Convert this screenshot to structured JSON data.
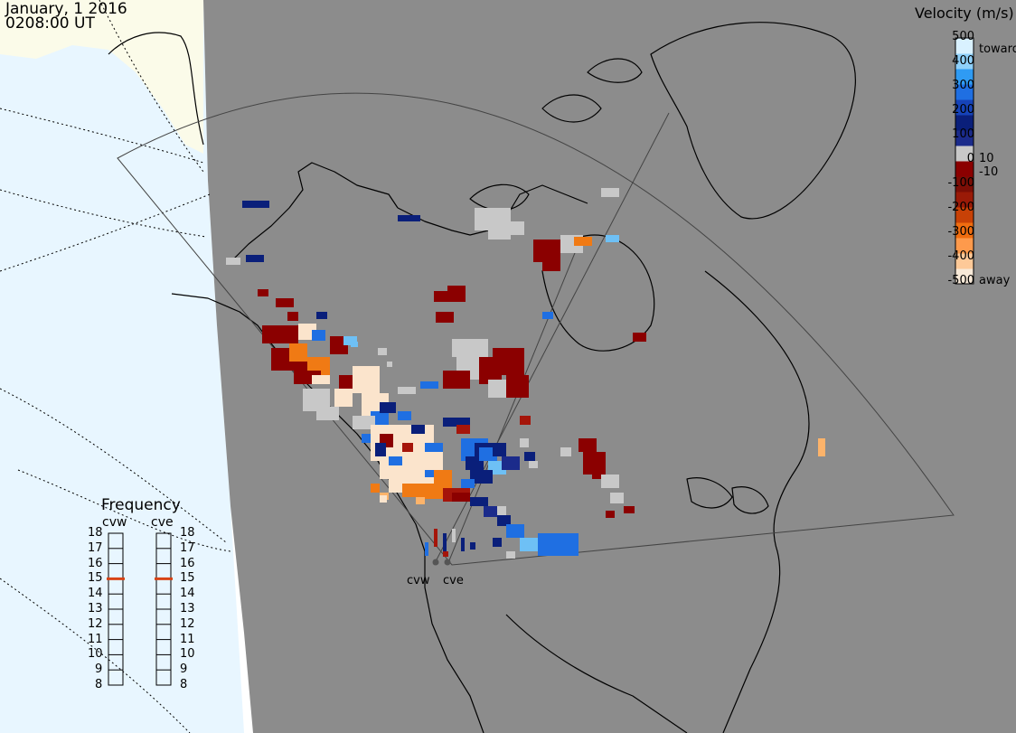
{
  "header": {
    "date": "January, 1 2016",
    "time": "0208:00 UT"
  },
  "colors": {
    "background_gray": "#8c8c8c",
    "ocean_light": "#e8f6ff",
    "land_light": "#fbfbe9",
    "ground_scatter": "#c8c8c8",
    "coastline": "#000000"
  },
  "velocity_legend": {
    "title": "Velocity (m/s)",
    "ticks": [
      "500",
      "400",
      "300",
      "200",
      "100",
      "0",
      "-100",
      "-200",
      "-300",
      "-400",
      "-500"
    ],
    "side_labels": {
      "toward": "toward",
      "small_pos": "10",
      "small_neg": "-10",
      "away": "away"
    },
    "colorscale": [
      "#f7e9d8",
      "#fdc998",
      "#fe9a4c",
      "#f06d10",
      "#c84106",
      "#9a1a07",
      "#7b0e06",
      "#8b0000",
      "#c8c8c8",
      "#1b2b8b",
      "#0a1f7a",
      "#1643b8",
      "#1f6fe2",
      "#2f9bf3",
      "#8fd0fa",
      "#d9f1ff"
    ]
  },
  "frequency": {
    "title": "Frequency",
    "radars": [
      "cvw",
      "cve"
    ],
    "scale": [
      "18",
      "17",
      "16",
      "15",
      "14",
      "13",
      "12",
      "11",
      "10",
      "9",
      "8"
    ],
    "values_mhz": {
      "cvw": 15,
      "cve": 15
    },
    "marker_color": "#d84315"
  },
  "sites": [
    "cvw",
    "cve"
  ],
  "map_elements": [
    "radar-fov-boundary",
    "coastlines",
    "latitude-longitude-grid",
    "night-shading"
  ]
}
